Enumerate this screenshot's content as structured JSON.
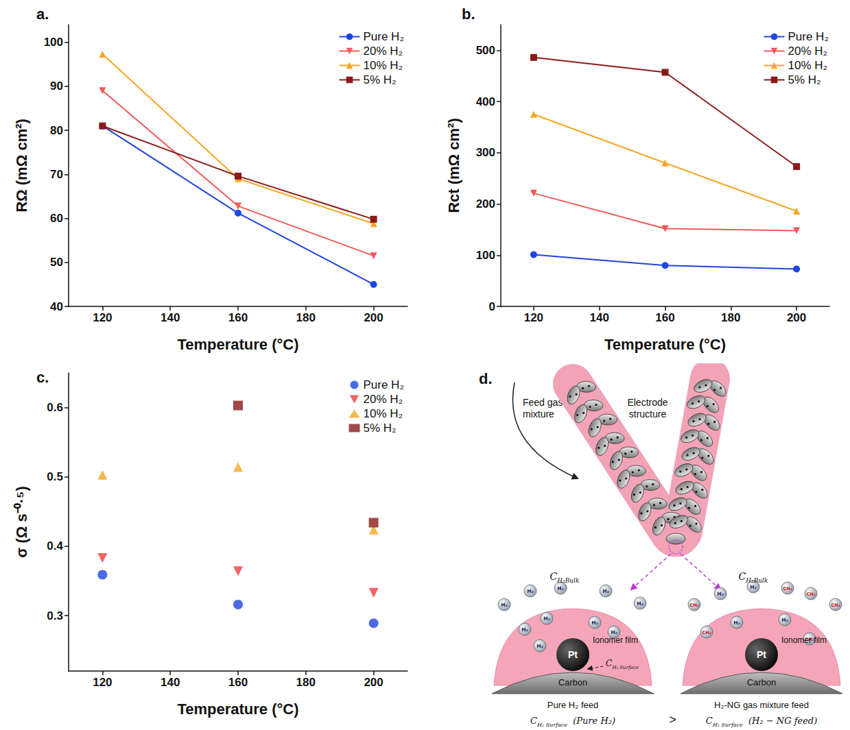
{
  "chart_data": [
    {
      "type": "line",
      "title": "a.",
      "x_label": "Temperature (°C)",
      "y_label": "RΩ (mΩ cm²)",
      "x": [
        120,
        160,
        200
      ],
      "series": [
        {
          "name": "Pure H₂",
          "color": "#1f45e0",
          "marker": "circle",
          "values": [
            81,
            61.2,
            45
          ]
        },
        {
          "name": "20% H₂",
          "color": "#f05a5a",
          "marker": "triangle_down",
          "values": [
            89,
            62.8,
            51.5
          ]
        },
        {
          "name": "10% H₂",
          "color": "#f5a623",
          "marker": "triangle",
          "values": [
            97.3,
            69,
            58.8
          ]
        },
        {
          "name": "5% H₂",
          "color": "#8b1a1a",
          "marker": "square",
          "values": [
            81,
            69.6,
            59.8
          ]
        }
      ],
      "xlim": [
        110,
        210
      ],
      "xticks": [
        120,
        140,
        160,
        180,
        200
      ],
      "ylim": [
        40,
        104
      ],
      "yticks": [
        40,
        50,
        60,
        70,
        80,
        90,
        100
      ],
      "grid": false,
      "legend": "upper right"
    },
    {
      "type": "line",
      "title": "b.",
      "x_label": "Temperature (°C)",
      "y_label": "Rct (mΩ cm²)",
      "x": [
        120,
        160,
        200
      ],
      "series": [
        {
          "name": "Pure H₂",
          "color": "#1f45e0",
          "marker": "circle",
          "values": [
            101,
            80,
            73
          ]
        },
        {
          "name": "20% H₂",
          "color": "#f05a5a",
          "marker": "triangle_down",
          "values": [
            221,
            152,
            148
          ]
        },
        {
          "name": "10% H₂",
          "color": "#f5a623",
          "marker": "triangle",
          "values": [
            375,
            280,
            186
          ]
        },
        {
          "name": "5% H₂",
          "color": "#8b1a1a",
          "marker": "square",
          "values": [
            486,
            457,
            273
          ]
        }
      ],
      "xlim": [
        110,
        210
      ],
      "xticks": [
        120,
        140,
        160,
        180,
        200
      ],
      "ylim": [
        0,
        550
      ],
      "yticks": [
        0,
        100,
        200,
        300,
        400,
        500
      ],
      "grid": false,
      "legend": "upper right"
    },
    {
      "type": "scatter",
      "title": "c.",
      "x_label": "Temperature (°C)",
      "y_label": "σ (Ω s⁻⁰·⁵)",
      "x": [
        120,
        160,
        200
      ],
      "series": [
        {
          "name": "Pure H₂",
          "color": "#1f45e0",
          "marker": "circle",
          "values": [
            0.359,
            0.316,
            0.289
          ]
        },
        {
          "name": "20% H₂",
          "color": "#f03c3c",
          "marker": "triangle_down",
          "values": [
            0.383,
            0.364,
            0.333
          ]
        },
        {
          "name": "10% H₂",
          "color": "#f5a623",
          "marker": "triangle",
          "values": [
            0.503,
            0.514,
            0.424
          ]
        },
        {
          "name": "5% H₂",
          "color": "#8b1a1a",
          "marker": "square",
          "values": [
            null,
            0.603,
            0.434
          ]
        }
      ],
      "xlim": [
        110,
        210
      ],
      "xticks": [
        120,
        140,
        160,
        180,
        200
      ],
      "ylim": [
        0.22,
        0.65
      ],
      "yticks": [
        0.3,
        0.4,
        0.5,
        0.6
      ],
      "grid": false,
      "legend": "upper right"
    }
  ],
  "diagram": {
    "label": "d.",
    "feed_label": "Feed gas mixture",
    "electrode_label": "Electrode structure",
    "molecules": {
      "h2": "H₂",
      "ch4": "CH₄"
    },
    "panels": [
      {
        "bulk": {
          "symbol": "C",
          "subscript": "H₂Bulk"
        },
        "surface": {
          "symbol": "C",
          "subscript": "H₂ Surface"
        },
        "pt": "Pt",
        "ionomer": "Ionomer film",
        "carbon": "Carbon",
        "caption": "Pure H₂ feed",
        "concentration": {
          "symbol": "C",
          "subscript": "H₂ Surface",
          "argument": "(Pure H₂)"
        }
      },
      {
        "bulk": {
          "symbol": "C",
          "subscript": "H₂Bulk"
        },
        "pt": "Pt",
        "ionomer": "Ionomer film",
        "carbon": "Carbon",
        "caption": "H₂-NG gas mixture feed",
        "concentration": {
          "symbol": "C",
          "subscript": "H₂ Surface",
          "argument": "(H₂ − NG feed)"
        }
      }
    ],
    "comparison": ">"
  }
}
